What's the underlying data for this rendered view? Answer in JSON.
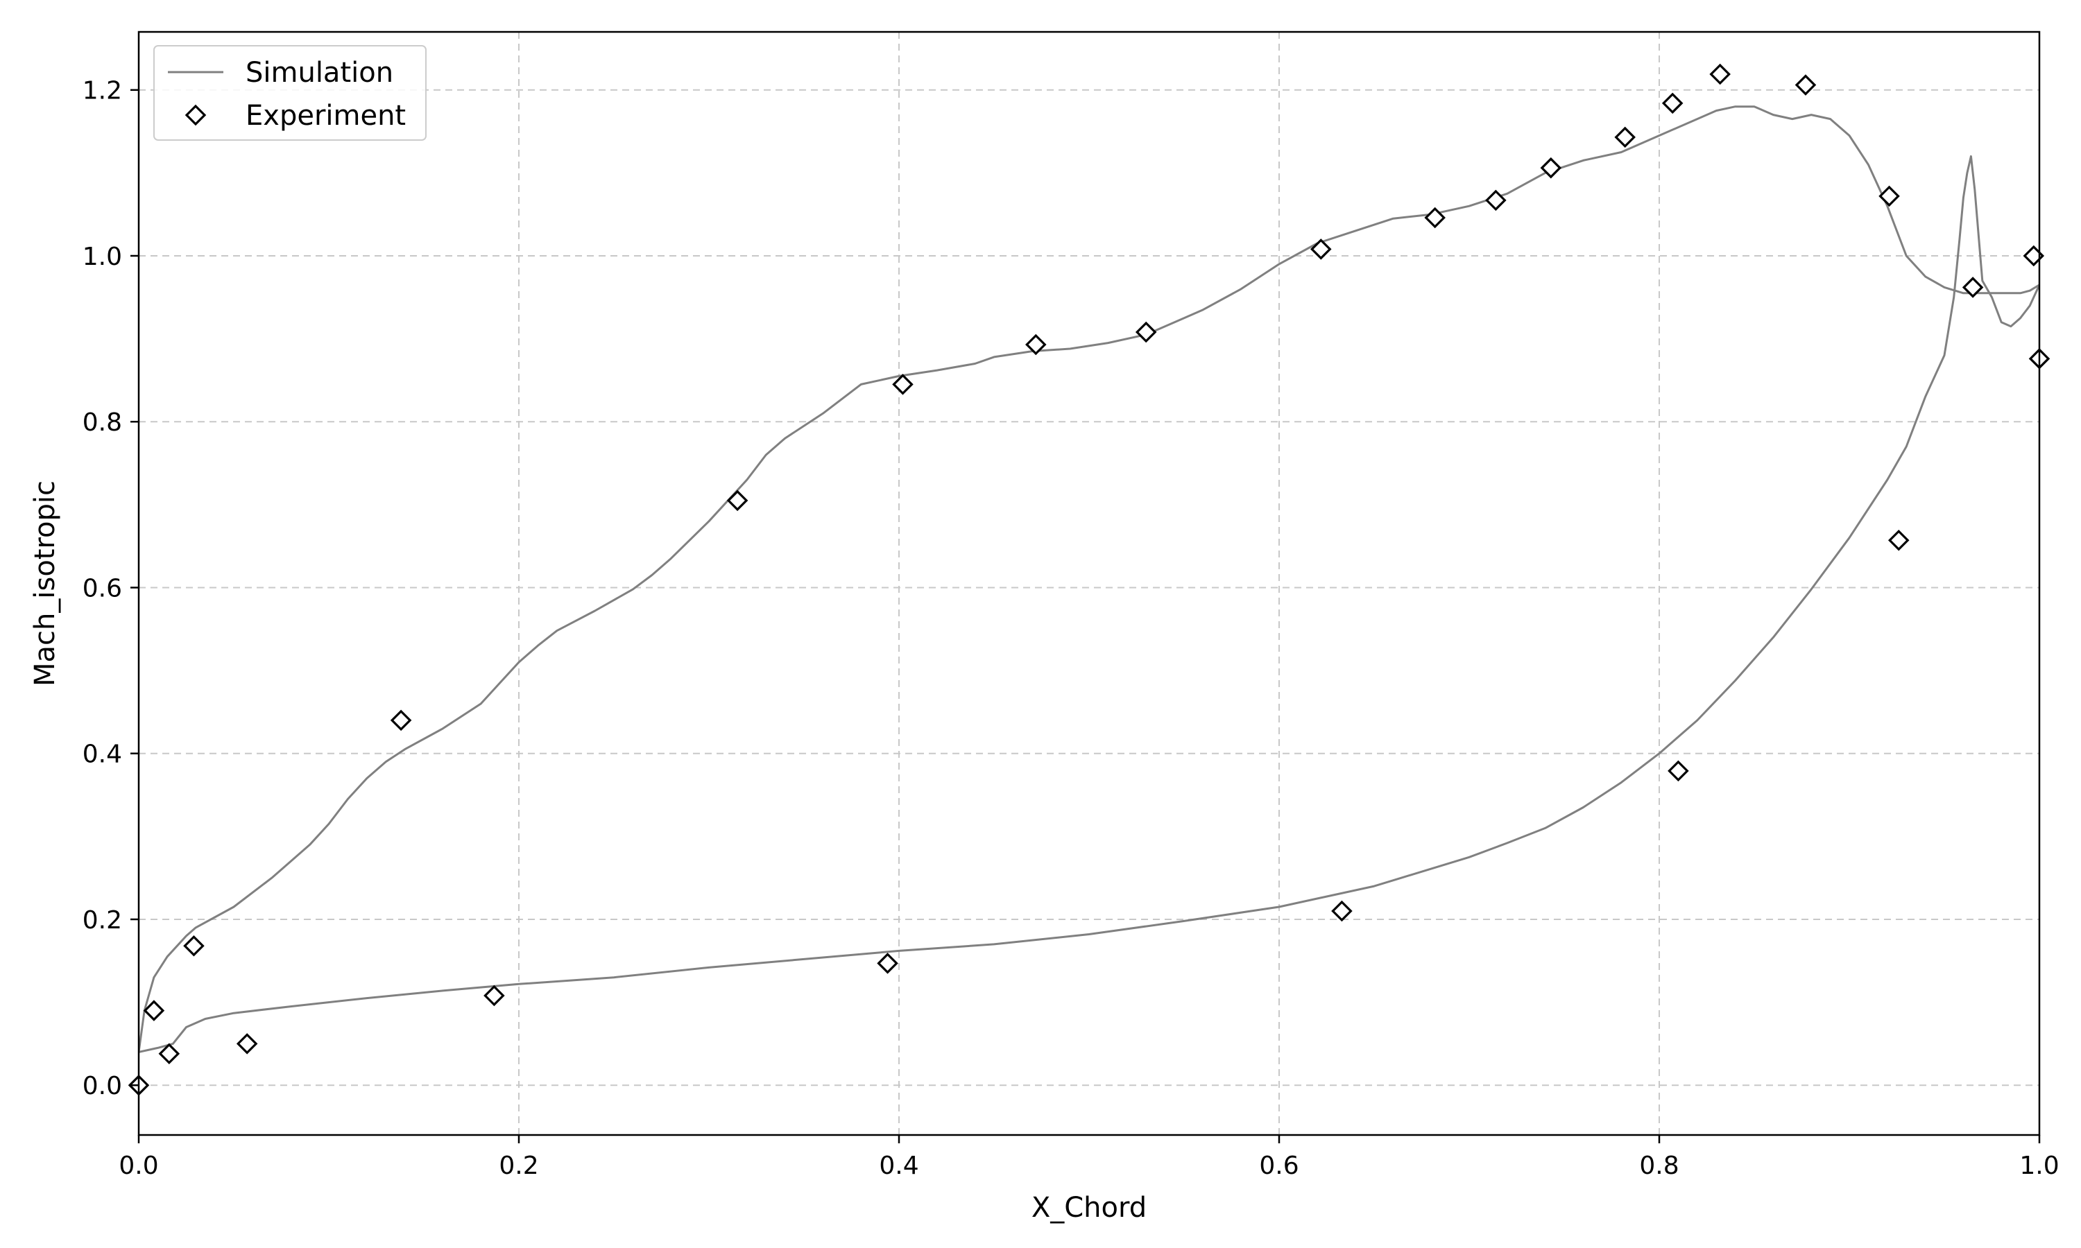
{
  "chart_data": {
    "type": "line",
    "title": "",
    "xlabel": "X_Chord",
    "ylabel": "Mach_isotropic",
    "xlim": [
      0.0,
      1.0
    ],
    "ylim": [
      -0.06,
      1.27
    ],
    "xticks": [
      0.0,
      0.2,
      0.4,
      0.6,
      0.8,
      1.0
    ],
    "xtick_labels": [
      "0.0",
      "0.2",
      "0.4",
      "0.6",
      "0.8",
      "1.0"
    ],
    "yticks": [
      0.0,
      0.2,
      0.4,
      0.6,
      0.8,
      1.0,
      1.2
    ],
    "ytick_labels": [
      "0.0",
      "0.2",
      "0.4",
      "0.6",
      "0.8",
      "1.0",
      "1.2"
    ],
    "grid": true,
    "legend_position": "top-left",
    "colors": {
      "simulation": "#808080",
      "experiment": "#000000",
      "grid": "#c8c8c8"
    },
    "series": [
      {
        "name": "Simulation",
        "kind": "line",
        "segments": [
          [
            [
              0.0,
              0.04
            ],
            [
              0.003,
              0.09
            ],
            [
              0.008,
              0.13
            ],
            [
              0.015,
              0.155
            ],
            [
              0.025,
              0.18
            ],
            [
              0.03,
              0.19
            ],
            [
              0.05,
              0.215
            ],
            [
              0.07,
              0.25
            ],
            [
              0.08,
              0.27
            ],
            [
              0.09,
              0.29
            ],
            [
              0.1,
              0.315
            ],
            [
              0.11,
              0.345
            ],
            [
              0.12,
              0.37
            ],
            [
              0.13,
              0.39
            ],
            [
              0.14,
              0.405
            ],
            [
              0.16,
              0.43
            ],
            [
              0.18,
              0.46
            ],
            [
              0.19,
              0.485
            ],
            [
              0.2,
              0.51
            ],
            [
              0.21,
              0.53
            ],
            [
              0.22,
              0.548
            ],
            [
              0.24,
              0.572
            ],
            [
              0.26,
              0.598
            ],
            [
              0.27,
              0.615
            ],
            [
              0.28,
              0.635
            ],
            [
              0.3,
              0.68
            ],
            [
              0.32,
              0.73
            ],
            [
              0.33,
              0.76
            ],
            [
              0.34,
              0.78
            ],
            [
              0.36,
              0.81
            ],
            [
              0.38,
              0.845
            ],
            [
              0.4,
              0.855
            ],
            [
              0.42,
              0.862
            ],
            [
              0.44,
              0.87
            ],
            [
              0.45,
              0.878
            ],
            [
              0.47,
              0.885
            ],
            [
              0.49,
              0.888
            ],
            [
              0.51,
              0.895
            ],
            [
              0.53,
              0.905
            ],
            [
              0.55,
              0.925
            ],
            [
              0.56,
              0.935
            ],
            [
              0.58,
              0.96
            ],
            [
              0.6,
              0.99
            ],
            [
              0.62,
              1.015
            ],
            [
              0.64,
              1.03
            ],
            [
              0.66,
              1.045
            ],
            [
              0.68,
              1.05
            ],
            [
              0.7,
              1.06
            ],
            [
              0.72,
              1.075
            ],
            [
              0.74,
              1.1
            ],
            [
              0.76,
              1.115
            ],
            [
              0.78,
              1.125
            ],
            [
              0.8,
              1.145
            ],
            [
              0.82,
              1.165
            ],
            [
              0.83,
              1.175
            ],
            [
              0.84,
              1.18
            ],
            [
              0.85,
              1.18
            ],
            [
              0.86,
              1.17
            ],
            [
              0.87,
              1.165
            ],
            [
              0.88,
              1.17
            ],
            [
              0.89,
              1.165
            ],
            [
              0.9,
              1.145
            ],
            [
              0.91,
              1.11
            ],
            [
              0.92,
              1.06
            ],
            [
              0.93,
              1.0
            ],
            [
              0.94,
              0.975
            ],
            [
              0.95,
              0.962
            ],
            [
              0.96,
              0.955
            ],
            [
              0.97,
              0.955
            ],
            [
              0.98,
              0.955
            ],
            [
              0.99,
              0.955
            ],
            [
              0.995,
              0.958
            ],
            [
              1.0,
              0.965
            ]
          ],
          [
            [
              0.0,
              0.04
            ],
            [
              0.01,
              0.045
            ],
            [
              0.018,
              0.05
            ],
            [
              0.025,
              0.07
            ],
            [
              0.035,
              0.08
            ],
            [
              0.05,
              0.087
            ],
            [
              0.08,
              0.095
            ],
            [
              0.12,
              0.105
            ],
            [
              0.16,
              0.114
            ],
            [
              0.2,
              0.122
            ],
            [
              0.25,
              0.13
            ],
            [
              0.3,
              0.142
            ],
            [
              0.35,
              0.152
            ],
            [
              0.4,
              0.162
            ],
            [
              0.45,
              0.17
            ],
            [
              0.5,
              0.182
            ],
            [
              0.55,
              0.198
            ],
            [
              0.6,
              0.215
            ],
            [
              0.65,
              0.24
            ],
            [
              0.7,
              0.275
            ],
            [
              0.72,
              0.292
            ],
            [
              0.74,
              0.31
            ],
            [
              0.76,
              0.335
            ],
            [
              0.78,
              0.365
            ],
            [
              0.8,
              0.4
            ],
            [
              0.82,
              0.44
            ],
            [
              0.84,
              0.488
            ],
            [
              0.86,
              0.54
            ],
            [
              0.88,
              0.598
            ],
            [
              0.9,
              0.66
            ],
            [
              0.92,
              0.73
            ],
            [
              0.93,
              0.77
            ],
            [
              0.94,
              0.83
            ],
            [
              0.95,
              0.88
            ],
            [
              0.955,
              0.95
            ],
            [
              0.958,
              1.02
            ],
            [
              0.96,
              1.07
            ],
            [
              0.962,
              1.1
            ],
            [
              0.964,
              1.12
            ],
            [
              0.966,
              1.08
            ],
            [
              0.97,
              0.97
            ],
            [
              0.975,
              0.95
            ],
            [
              0.98,
              0.92
            ],
            [
              0.985,
              0.915
            ],
            [
              0.99,
              0.925
            ],
            [
              0.995,
              0.94
            ],
            [
              1.0,
              0.965
            ]
          ]
        ]
      },
      {
        "name": "Experiment",
        "kind": "marker",
        "marker": "diamond",
        "points": [
          [
            0.0,
            0.0
          ],
          [
            0.008,
            0.09
          ],
          [
            0.016,
            0.038
          ],
          [
            0.029,
            0.168
          ],
          [
            0.057,
            0.05
          ],
          [
            0.138,
            0.44
          ],
          [
            0.187,
            0.108
          ],
          [
            0.315,
            0.705
          ],
          [
            0.394,
            0.147
          ],
          [
            0.402,
            0.845
          ],
          [
            0.472,
            0.893
          ],
          [
            0.53,
            0.908
          ],
          [
            0.622,
            1.008
          ],
          [
            0.633,
            0.21
          ],
          [
            0.682,
            1.046
          ],
          [
            0.714,
            1.067
          ],
          [
            0.743,
            1.106
          ],
          [
            0.782,
            1.143
          ],
          [
            0.807,
            1.184
          ],
          [
            0.81,
            0.379
          ],
          [
            0.832,
            1.219
          ],
          [
            0.877,
            1.206
          ],
          [
            0.921,
            1.072
          ],
          [
            0.926,
            0.657
          ],
          [
            0.965,
            0.962
          ],
          [
            0.997,
            1.0
          ],
          [
            1.0,
            0.876
          ]
        ]
      }
    ]
  }
}
